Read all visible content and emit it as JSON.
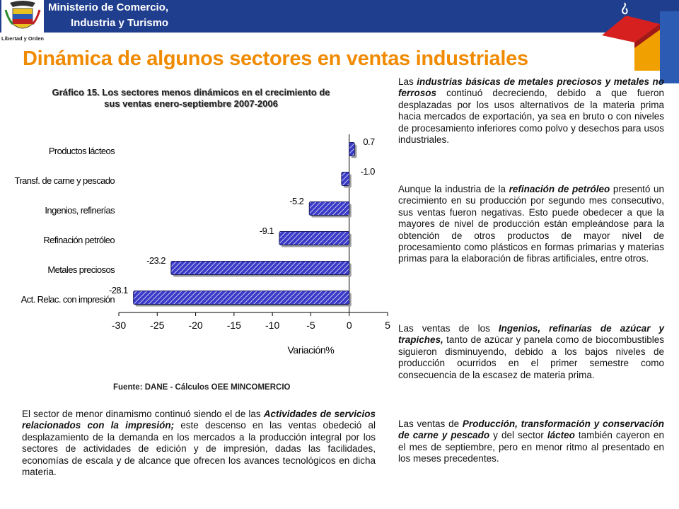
{
  "header": {
    "ministry_line1": "Ministerio de Comercio,",
    "ministry_line2": "Industria y Turismo",
    "logo_text": "Libertad y Orden"
  },
  "page_title": "Dinámica de algunos sectores en ventas industriales",
  "chart_title_line1": "Gráfico 15.  Los sectores menos dinámicos en  el crecimiento de",
  "chart_title_line2": "sus ventas enero-septiembre 2007-2006",
  "source": "Fuente: DANE - Cálculos OEE MINCOMERCIO",
  "chart_data": {
    "type": "bar",
    "orientation": "horizontal",
    "categories": [
      "Productos lácteos",
      "Transf. de carne y pescado",
      "Ingenios, refinerías",
      "Refinación petróleo",
      "Metales preciosos",
      "Act. Relac. con impresión"
    ],
    "values": [
      0.7,
      -1.0,
      -5.2,
      -9.1,
      -23.2,
      -28.1
    ],
    "value_labels": [
      "0.7",
      "-1.0",
      "-5.2",
      "-9.1",
      "-23.2",
      "-28.1"
    ],
    "xlabel": "Variación%",
    "xlim": [
      -30,
      5
    ],
    "xticks": [
      "-30",
      "-25",
      "-20",
      "-15",
      "-10",
      "-5",
      "0",
      "5"
    ],
    "bar_color": "#3a3ac8"
  },
  "paragraphs": {
    "bottom": {
      "pre": " El sector de menor dinamismo continuó siendo el de las ",
      "em": "Actividades de servicios relacionados con la impresión;",
      "post": " este descenso en las ventas obedeció al desplazamiento de la demanda en los mercados a la producción integral por los sectores de actividades de edición y de impresión, dadas las facilidades, economías de escala y de alcance que ofrecen los avances tecnológicos en dicha materia."
    },
    "r1": {
      "pre": "Las ",
      "em": "industrias básicas de metales preciosos y metales no ferrosos",
      "post": " continuó decreciendo, debido a que fueron desplazadas por los usos alternativos de la materia prima hacia mercados de exportación, ya sea en bruto o con niveles de procesamiento inferiores como polvo y desechos para usos industriales."
    },
    "r2": {
      "pre": "Aunque la industria de la ",
      "em": "refinación de petróleo",
      "post": " presentó un crecimiento en su producción por segundo mes consecutivo, sus ventas fueron negativas.  Esto puede obedecer a que la mayores de nivel de producción están empleándose para la obtención de otros productos de mayor nivel de procesamiento como plásticos en formas primarias y materias primas para la elaboración de fibras artificiales, entre otros."
    },
    "r3": {
      "pre": "Las ventas de los ",
      "em": "Ingenios, refinarías de azúcar y trapiches,",
      "post": " tanto de azúcar y panela como de biocombustibles siguieron disminuyendo, debido a los bajos niveles de producción ocurridos en el primer semestre como consecuencia de la escasez de materia prima."
    },
    "r4": {
      "pre": "Las ventas de ",
      "em": "Producción, transformación y conservación de carne y pescado",
      "mid": " y del sector ",
      "em2": "lácteo",
      "post": " también cayeron en el mes de septiembre, pero en menor ritmo al presentado en los meses precedentes."
    }
  },
  "colors": {
    "header_blue": "#1f3e8e",
    "title_orange": "#f08a00"
  }
}
